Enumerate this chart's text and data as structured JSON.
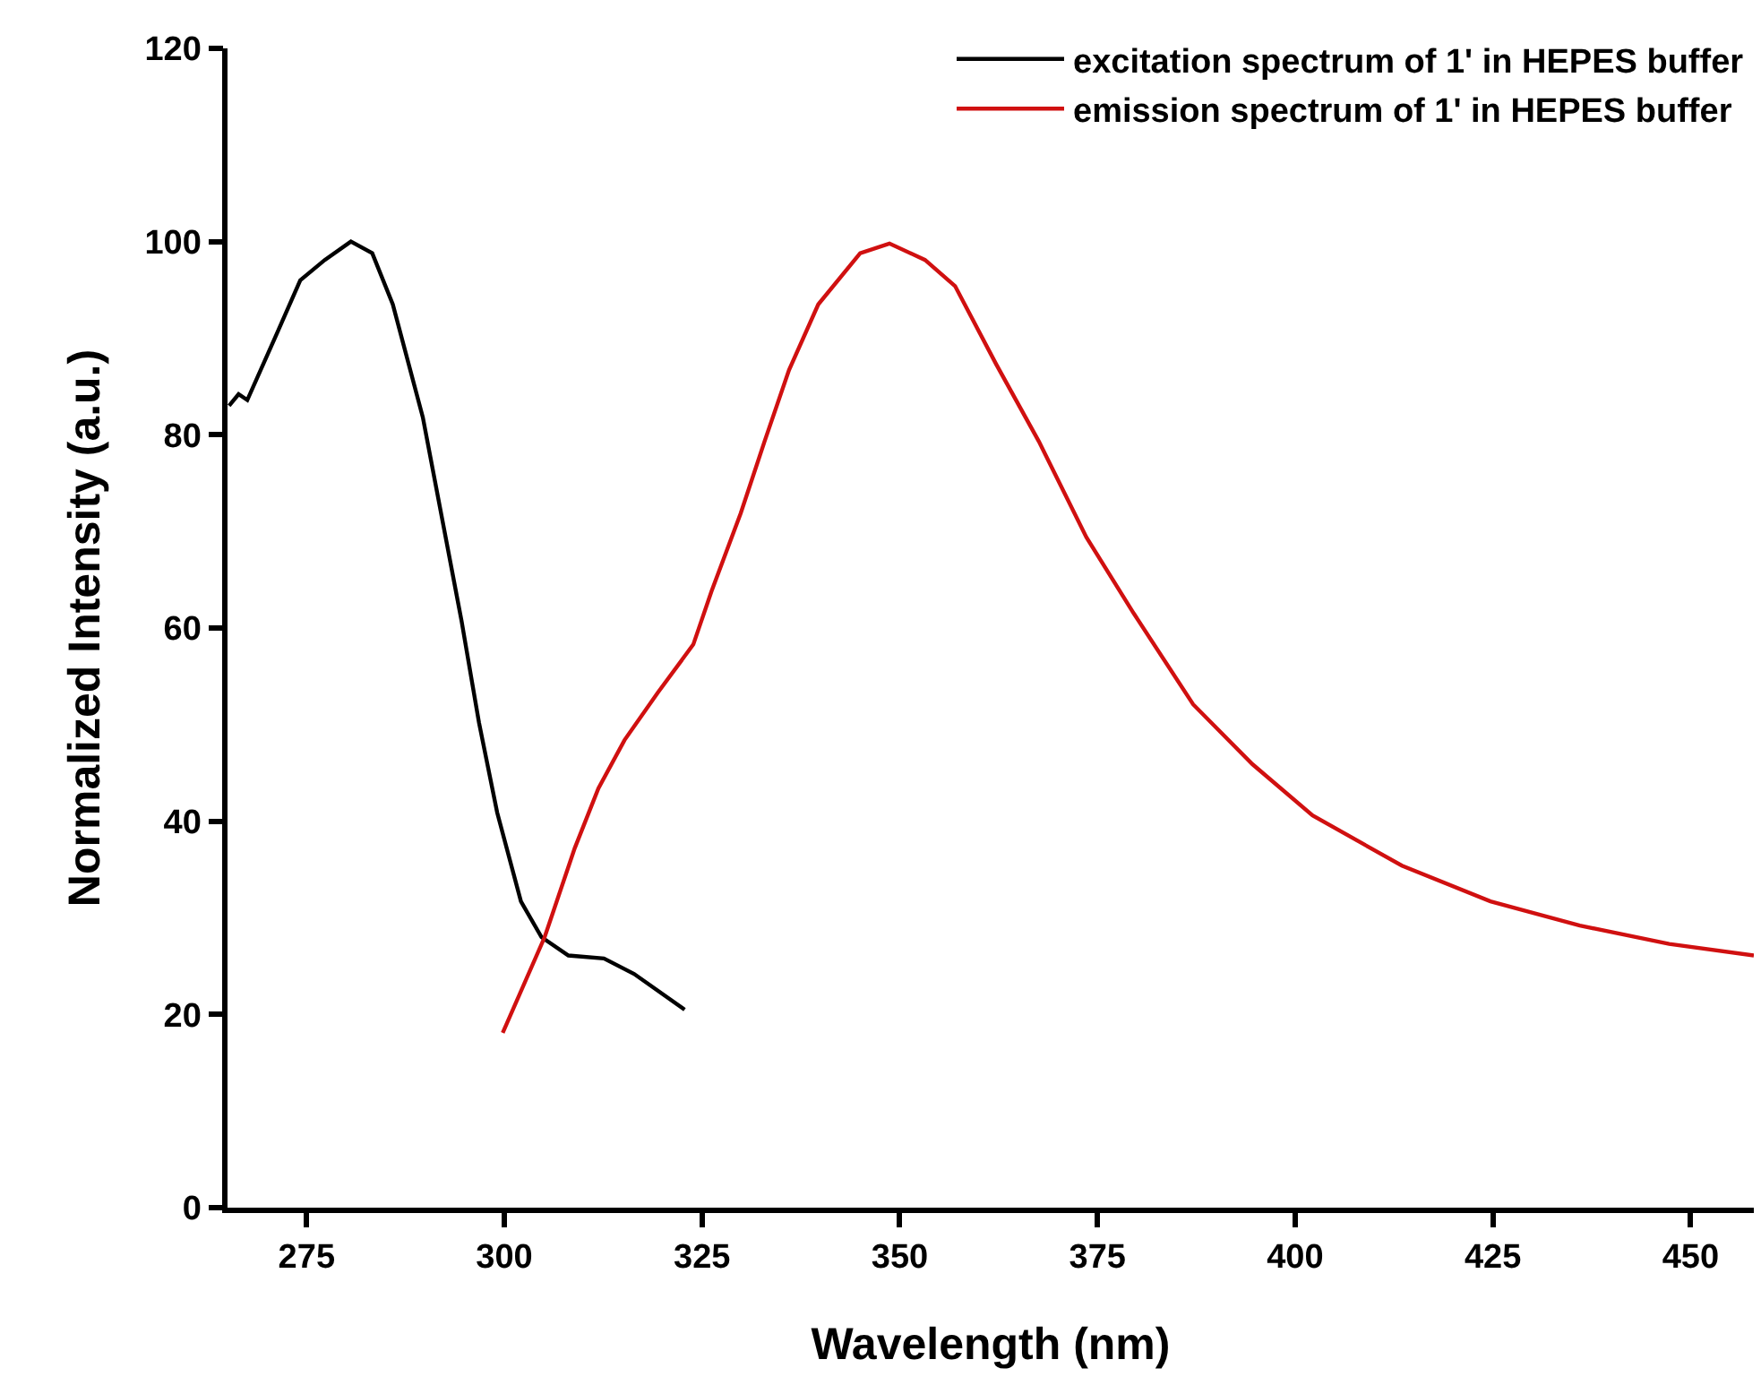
{
  "chart_data": {
    "type": "line",
    "xlabel": "Wavelength (nm)",
    "ylabel": "Normalized Intensity (a.u.)",
    "xlim": [
      265,
      458
    ],
    "ylim": [
      0,
      120
    ],
    "xticks": [
      275,
      300,
      325,
      350,
      375,
      400,
      425,
      450
    ],
    "yticks": [
      0,
      20,
      40,
      60,
      80,
      100,
      120
    ],
    "legend": "top right",
    "marker": "none",
    "line_style": "solid",
    "series": [
      {
        "name": "excitation spectrum of 1' in HEPES buffer",
        "color": "#000000",
        "x": [
          265.2,
          266.4,
          267.5,
          271.2,
          274.2,
          277.3,
          280.6,
          283.3,
          285.9,
          289.7,
          292.3,
          294.6,
          296.8,
          299.1,
          302.1,
          304.7,
          308.1,
          312.6,
          316.4,
          322.8
        ],
        "values": [
          83.0,
          84.2,
          83.6,
          90.4,
          96.0,
          98.1,
          100,
          98.8,
          93.5,
          81.8,
          70.6,
          60.7,
          50.2,
          40.9,
          31.7,
          28.0,
          26.1,
          25.8,
          24.2,
          20.5
        ]
      },
      {
        "name": "emission spectrum of 1' in HEPES buffer",
        "color": "#d01010",
        "x": [
          299.8,
          305.1,
          308.9,
          311.9,
          315.2,
          319.4,
          323.9,
          326.2,
          329.9,
          332.9,
          336.0,
          339.7,
          345.0,
          348.7,
          353.2,
          357.0,
          362.2,
          367.6,
          373.6,
          379.6,
          387.1,
          394.6,
          402.2,
          413.5,
          424.7,
          436.0,
          447.3,
          458.0
        ],
        "values": [
          18.1,
          28.0,
          37.2,
          43.4,
          48.4,
          53.3,
          58.3,
          63.8,
          71.9,
          79.3,
          86.7,
          93.5,
          98.8,
          99.8,
          98.1,
          95.4,
          87.3,
          79.3,
          69.4,
          61.5,
          52.1,
          45.9,
          40.6,
          35.4,
          31.7,
          29.2,
          27.3,
          26.1
        ]
      }
    ]
  }
}
